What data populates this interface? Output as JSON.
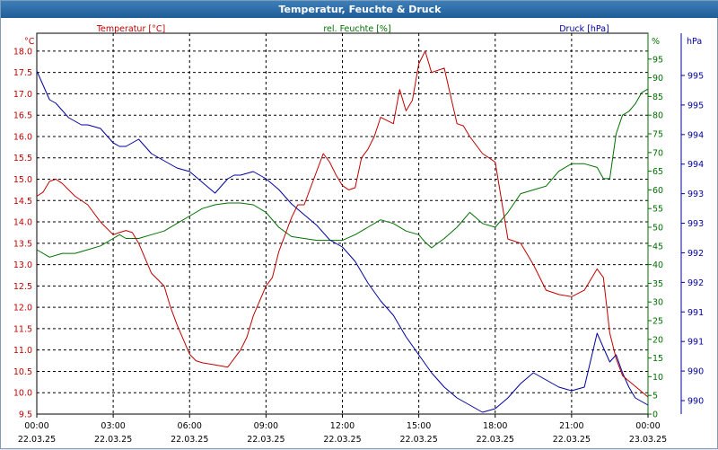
{
  "window": {
    "title": "Temperatur, Feuchte & Druck"
  },
  "colors": {
    "temperature": "#c00000",
    "humidity": "#007000",
    "pressure": "#0000a0",
    "grid": "#000000",
    "titlebar": "#2a6aa8"
  },
  "chart_data": {
    "type": "line",
    "title": "Temperatur, Feuchte & Druck",
    "grid": true,
    "x_ticks": [
      {
        "time": "00:00",
        "date": "22.03.25"
      },
      {
        "time": "03:00",
        "date": "22.03.25"
      },
      {
        "time": "06:00",
        "date": "22.03.25"
      },
      {
        "time": "09:00",
        "date": "22.03.25"
      },
      {
        "time": "12:00",
        "date": "22.03.25"
      },
      {
        "time": "15:00",
        "date": "22.03.25"
      },
      {
        "time": "18:00",
        "date": "22.03.25"
      },
      {
        "time": "21:00",
        "date": "22.03.25"
      },
      {
        "time": "00:00",
        "date": "23.03.25"
      }
    ],
    "axes": {
      "temperature": {
        "unit": "°C",
        "label": "Temperatur [°C]",
        "ylim": [
          9.5,
          18.25
        ],
        "ticks": [
          "18.0",
          "17.5",
          "17.0",
          "16.5",
          "16.0",
          "15.5",
          "15.0",
          "14.5",
          "14.0",
          "13.5",
          "13.0",
          "12.5",
          "12.0",
          "11.5",
          "11.0",
          "10.5",
          "10.0",
          "9.5"
        ]
      },
      "humidity": {
        "unit": "%",
        "label": "rel. Feuchte [%]",
        "ylim": [
          0,
          100
        ],
        "ticks": [
          "95",
          "90",
          "85",
          "80",
          "75",
          "70",
          "65",
          "60",
          "55",
          "50",
          "45",
          "40",
          "35",
          "30",
          "25",
          "20",
          "15",
          "10",
          "5",
          "0"
        ]
      },
      "pressure": {
        "unit": "hPa",
        "label": "Druck [hPa]",
        "ticks": [
          "995",
          "995",
          "994",
          "994",
          "993",
          "993",
          "992",
          "992",
          "991",
          "991",
          "990",
          "990"
        ]
      }
    },
    "series": [
      {
        "name": "Temperatur [°C]",
        "x": [
          0,
          0.25,
          0.5,
          0.75,
          1,
          1.5,
          2,
          2.5,
          3,
          3.25,
          3.5,
          3.75,
          4,
          4.5,
          5,
          5.25,
          5.5,
          6,
          6.25,
          6.5,
          7,
          7.5,
          8,
          8.25,
          8.5,
          9,
          9.25,
          9.5,
          10,
          10.25,
          10.5,
          11,
          11.25,
          11.5,
          11.75,
          12,
          12.25,
          12.5,
          12.75,
          13,
          13.25,
          13.5,
          14,
          14.25,
          14.5,
          14.75,
          15,
          15.25,
          15.5,
          16,
          16.5,
          16.75,
          17,
          17.5,
          17.75,
          18,
          18.5,
          19,
          19.5,
          20,
          20.5,
          21,
          21.5,
          22,
          22.25,
          22.5,
          22.75,
          23,
          23.5,
          24
        ],
        "values": [
          14.6,
          14.7,
          14.95,
          15.0,
          14.9,
          14.6,
          14.4,
          14.0,
          13.7,
          13.75,
          13.8,
          13.75,
          13.5,
          12.8,
          12.5,
          12.0,
          11.6,
          10.9,
          10.75,
          10.7,
          10.65,
          10.6,
          11.0,
          11.3,
          11.8,
          12.5,
          12.7,
          13.3,
          14.1,
          14.4,
          14.4,
          15.2,
          15.6,
          15.4,
          15.1,
          14.85,
          14.75,
          14.8,
          15.5,
          15.7,
          16.0,
          16.45,
          16.3,
          17.1,
          16.6,
          16.85,
          17.7,
          18.0,
          17.5,
          17.6,
          16.3,
          16.25,
          16.0,
          15.6,
          15.5,
          15.4,
          13.6,
          13.5,
          13.0,
          12.4,
          12.3,
          12.25,
          12.4,
          12.9,
          12.7,
          11.4,
          10.8,
          10.4,
          10.15,
          9.9
        ]
      },
      {
        "name": "rel. Feuchte [%]",
        "x": [
          0,
          0.5,
          1,
          1.5,
          2,
          2.5,
          3,
          3.25,
          3.5,
          3.75,
          4,
          4.5,
          5,
          5.5,
          6,
          6.5,
          7,
          7.5,
          8,
          8.5,
          9,
          9.5,
          10,
          10.5,
          11,
          11.5,
          12,
          12.5,
          13,
          13.5,
          14,
          14.5,
          15,
          15.25,
          15.5,
          16,
          16.5,
          17,
          17.5,
          18,
          18.5,
          19,
          19.5,
          20,
          20.5,
          21,
          21.5,
          22,
          22.25,
          22.5,
          22.75,
          23,
          23.25,
          23.5,
          23.75,
          24
        ],
        "values": [
          44,
          42,
          43,
          43,
          44,
          45,
          47,
          48,
          47,
          47,
          47,
          48,
          49,
          51,
          53,
          55,
          56,
          56.5,
          56.5,
          56,
          54,
          50,
          47.5,
          47,
          46.5,
          46.5,
          46.5,
          48,
          50,
          52,
          51,
          49,
          48,
          46,
          44.5,
          47,
          50,
          54,
          51,
          50,
          54,
          59,
          60,
          61,
          65,
          67,
          67,
          66,
          63,
          63,
          75,
          80,
          81,
          83,
          86,
          87
        ]
      },
      {
        "name": "Druck [hPa]",
        "x": [
          0,
          0.25,
          0.5,
          0.75,
          1,
          1.25,
          1.5,
          1.75,
          2,
          2.5,
          3,
          3.25,
          3.5,
          3.75,
          4,
          4.25,
          4.5,
          5,
          5.5,
          6,
          6.5,
          7,
          7.25,
          7.5,
          7.75,
          8,
          8.5,
          9,
          9.5,
          10,
          10.5,
          11,
          11.5,
          12,
          12.5,
          13,
          13.5,
          14,
          14.5,
          15,
          15.5,
          16,
          16.5,
          17,
          17.5,
          18,
          18.5,
          19,
          19.5,
          20,
          20.5,
          21,
          21.5,
          22,
          22.25,
          22.5,
          22.75,
          23,
          23.25,
          23.5,
          23.75,
          24
        ],
        "values": [
          0.95,
          0.91,
          0.87,
          0.86,
          0.84,
          0.82,
          0.81,
          0.8,
          0.8,
          0.79,
          0.75,
          0.74,
          0.74,
          0.75,
          0.76,
          0.74,
          0.72,
          0.7,
          0.68,
          0.67,
          0.64,
          0.61,
          0.63,
          0.65,
          0.66,
          0.66,
          0.67,
          0.65,
          0.62,
          0.58,
          0.55,
          0.52,
          0.48,
          0.46,
          0.42,
          0.36,
          0.31,
          0.27,
          0.21,
          0.16,
          0.11,
          0.07,
          0.04,
          0.02,
          0.0,
          0.01,
          0.04,
          0.08,
          0.11,
          0.09,
          0.07,
          0.06,
          0.07,
          0.22,
          0.18,
          0.14,
          0.16,
          0.11,
          0.07,
          0.04,
          0.03,
          0.02
        ]
      }
    ]
  }
}
